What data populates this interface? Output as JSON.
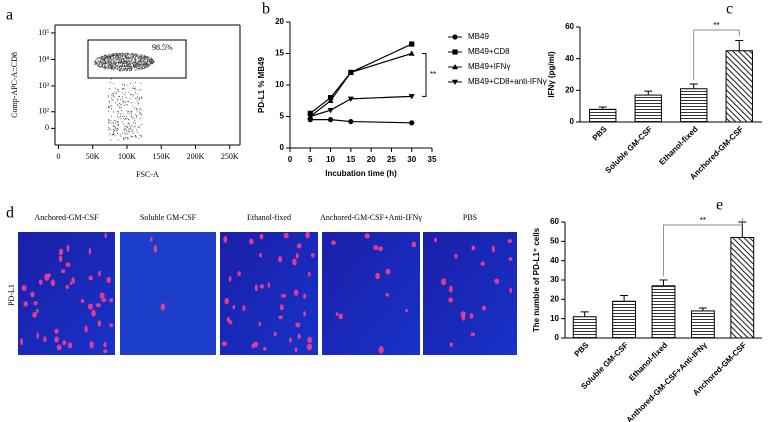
{
  "chart_data": [
    {
      "type": "scatter",
      "panel_label": "a",
      "xlabel": "FSC-A",
      "ylabel": "Comp-APC-A::CD8",
      "annotation": "98.5%",
      "xlim": [
        -5000,
        265000
      ],
      "xticks": [
        0,
        {
          "value": 50000,
          "label": "50K"
        },
        {
          "value": 100000,
          "label": "100K"
        },
        {
          "value": 150000,
          "label": "150K"
        },
        {
          "value": 200000,
          "label": "200K"
        },
        {
          "value": 250000,
          "label": "250K"
        }
      ],
      "yscale": "biexponential",
      "ylim": [
        -100,
        200000
      ],
      "yticks": [
        {
          "value": 100000,
          "label": "10⁵"
        },
        {
          "value": 10000,
          "label": "10⁴"
        },
        {
          "value": 1000,
          "label": "10³"
        },
        {
          "value": 100,
          "label": "10²"
        },
        0
      ]
    },
    {
      "type": "line",
      "panel_label": "b",
      "xlabel": "Incubation time (h)",
      "ylabel": "PD-L1 % MB49",
      "annotation": "**",
      "x": [
        5,
        10,
        15,
        30
      ],
      "xlim": [
        0,
        35
      ],
      "xticks": [
        0,
        5,
        10,
        15,
        20,
        25,
        30,
        35
      ],
      "ylim": [
        0,
        20
      ],
      "yticks": [
        0,
        5,
        10,
        15,
        20
      ],
      "series": [
        {
          "name": "MB49",
          "color": "#000000",
          "marker": "circle",
          "values": [
            4.5,
            4.5,
            4.2,
            4.0
          ]
        },
        {
          "name": "MB49+CD8",
          "color": "#000000",
          "marker": "square",
          "values": [
            5.5,
            8,
            12,
            16.5
          ]
        },
        {
          "name": "MB49+IFNγ",
          "color": "#000000",
          "marker": "triangle-up",
          "values": [
            5,
            7.5,
            12,
            15
          ]
        },
        {
          "name": "MB49+CD8+anti-IFNγ",
          "color": "#000000",
          "marker": "triangle-down",
          "values": [
            5,
            6,
            7.8,
            8.2
          ]
        }
      ]
    },
    {
      "type": "bar",
      "panel_label": "c",
      "ylabel": "IFNγ (pg/ml)",
      "annotation": "**",
      "categories": [
        "PBS",
        "Soluble GM-CSF",
        "Ethanol-fixed",
        "Anchored-GM-CSF"
      ],
      "values": [
        8,
        17,
        21,
        45
      ],
      "errors": [
        1.5,
        2.5,
        3,
        6.5
      ],
      "ylim": [
        0,
        60
      ],
      "yticks": [
        0,
        20,
        40,
        60
      ],
      "color": "#000000"
    },
    {
      "type": "bar",
      "panel_label": "e",
      "ylabel": "The numble of PD-L1⁺ cells",
      "annotation": "**",
      "categories": [
        "PBS",
        "Soluble GM-CSF",
        "Ethanol-fixed",
        "Anthored-GM-CSF+Anti-IFNγ",
        "Anchored-GM-CSF"
      ],
      "values": [
        11,
        19,
        27,
        14,
        52
      ],
      "errors": [
        2.5,
        3,
        3,
        1.5,
        8
      ],
      "ylim": [
        0,
        60
      ],
      "yticks": [
        0,
        10,
        20,
        30,
        40,
        50,
        60
      ],
      "color": "#000000"
    }
  ],
  "figure_d": {
    "panel_label": "d",
    "row_label": "PD-L1",
    "images": [
      "Anchored-GM-CSF",
      "Soluble GM-CSF",
      "Ethanol-fixed",
      "Anchored-GM-CSF+Anti-IFNγ",
      "PBS"
    ]
  }
}
